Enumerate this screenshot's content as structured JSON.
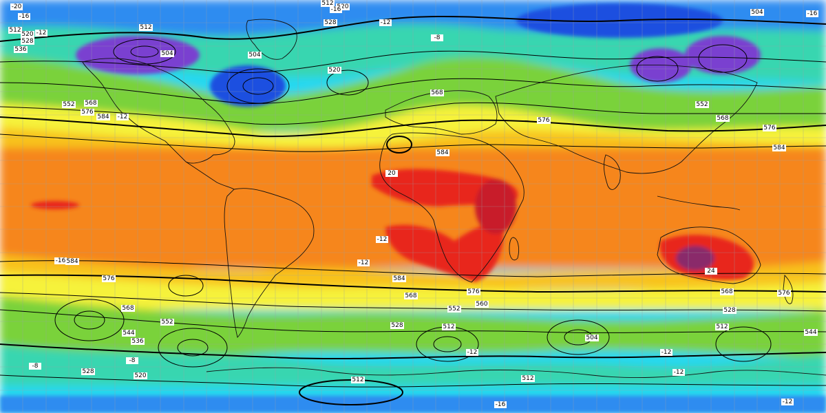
{
  "map": {
    "kind": "global geopotential height and temperature",
    "contour_labels": [
      {
        "id": "c1",
        "text": "512"
      },
      {
        "id": "c2",
        "text": "520"
      },
      {
        "id": "c3",
        "text": "504"
      },
      {
        "id": "c4",
        "text": "512"
      },
      {
        "id": "c5",
        "text": "520"
      },
      {
        "id": "c6",
        "text": "528"
      },
      {
        "id": "c7",
        "text": "536"
      },
      {
        "id": "c8",
        "text": "512"
      },
      {
        "id": "c9",
        "text": "504"
      },
      {
        "id": "c10",
        "text": "520"
      },
      {
        "id": "c11",
        "text": "528"
      },
      {
        "id": "c12",
        "text": "552"
      },
      {
        "id": "c13",
        "text": "568"
      },
      {
        "id": "c14",
        "text": "576"
      },
      {
        "id": "c15",
        "text": "584"
      },
      {
        "id": "c16",
        "text": "568"
      },
      {
        "id": "c17",
        "text": "576"
      },
      {
        "id": "c18",
        "text": "584"
      },
      {
        "id": "c19",
        "text": "584"
      },
      {
        "id": "c20",
        "text": "576"
      },
      {
        "id": "c21",
        "text": "568"
      },
      {
        "id": "c22",
        "text": "552"
      },
      {
        "id": "c23",
        "text": "544"
      },
      {
        "id": "c24",
        "text": "536"
      },
      {
        "id": "c25",
        "text": "528"
      },
      {
        "id": "c26",
        "text": "520"
      },
      {
        "id": "c27",
        "text": "512"
      },
      {
        "id": "c28",
        "text": "584"
      },
      {
        "id": "c29",
        "text": "576"
      },
      {
        "id": "c30",
        "text": "568"
      },
      {
        "id": "c31",
        "text": "560"
      },
      {
        "id": "c32",
        "text": "552"
      },
      {
        "id": "c33",
        "text": "528"
      },
      {
        "id": "c34",
        "text": "512"
      },
      {
        "id": "c35",
        "text": "504"
      },
      {
        "id": "c36",
        "text": "512"
      },
      {
        "id": "c37",
        "text": "576"
      },
      {
        "id": "c38",
        "text": "568"
      },
      {
        "id": "c39",
        "text": "528"
      },
      {
        "id": "c40",
        "text": "512"
      },
      {
        "id": "c41",
        "text": "584"
      },
      {
        "id": "c42",
        "text": "576"
      },
      {
        "id": "c43",
        "text": "568"
      },
      {
        "id": "c44",
        "text": "552"
      },
      {
        "id": "c45",
        "text": "544"
      },
      {
        "id": "c46",
        "text": "504"
      }
    ],
    "temperature_labels": [
      {
        "id": "t1",
        "text": "-20"
      },
      {
        "id": "t2",
        "text": "-16"
      },
      {
        "id": "t3",
        "text": "-12"
      },
      {
        "id": "t4",
        "text": "-8"
      },
      {
        "id": "t5",
        "text": "-12"
      },
      {
        "id": "t6",
        "text": "-16"
      },
      {
        "id": "t7",
        "text": "-12"
      },
      {
        "id": "t8",
        "text": "-12"
      },
      {
        "id": "t9",
        "text": "-16"
      },
      {
        "id": "t10",
        "text": "-12"
      },
      {
        "id": "t11",
        "text": "-16"
      },
      {
        "id": "t12",
        "text": "-12"
      },
      {
        "id": "t13",
        "text": "-8"
      },
      {
        "id": "t14",
        "text": "-12"
      },
      {
        "id": "t15",
        "text": "-16"
      },
      {
        "id": "t16",
        "text": "20"
      },
      {
        "id": "t17",
        "text": "24"
      },
      {
        "id": "t18",
        "text": "-12"
      },
      {
        "id": "t19",
        "text": "-8"
      },
      {
        "id": "t20",
        "text": "-12"
      }
    ],
    "palette": {
      "violet": "#7a3fd0",
      "deep_blue": "#1f4fe0",
      "blue": "#2f8cf0",
      "cyan": "#25d8f0",
      "teal": "#37d6b0",
      "green": "#7ad23a",
      "yellow_green": "#c8e030",
      "yellow": "#f6f23a",
      "gold": "#f8c21e",
      "orange": "#f6861a",
      "deep_orange": "#f06a18",
      "red": "#e8281c",
      "crimson": "#c81a2a",
      "plum": "#8a2a6a",
      "grid": "#9aa0a8",
      "contour": "#000000",
      "coast": "#111111",
      "label_bg": "#ffffff"
    }
  }
}
